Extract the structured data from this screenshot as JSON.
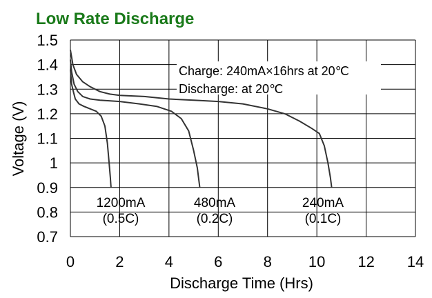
{
  "chart_data": {
    "type": "line",
    "title": "Low Rate Discharge",
    "title_color": "#1a7a1a",
    "xlabel": "Discharge Time (Hrs)",
    "ylabel": "Voltage (V)",
    "xlim": [
      0,
      14
    ],
    "ylim": [
      0.7,
      1.5
    ],
    "x_ticks": [
      "0",
      "2",
      "4",
      "6",
      "8",
      "10",
      "12",
      "14"
    ],
    "y_ticks": [
      "0.7",
      "0.8",
      "0.9",
      "1",
      "1.1",
      "1.2",
      "1.3",
      "1.4",
      "1.5"
    ],
    "grid": true,
    "annotations": {
      "charge": "Charge: 240mA×16hrs at 20℃",
      "discharge": "Discharge: at 20℃"
    },
    "series": [
      {
        "name": "1200mA (0.5C)",
        "label_line1": "1200mA",
        "label_line2": "(0.5C)",
        "points": [
          [
            0.0,
            1.38
          ],
          [
            0.05,
            1.32
          ],
          [
            0.12,
            1.29
          ],
          [
            0.2,
            1.26
          ],
          [
            0.35,
            1.24
          ],
          [
            0.55,
            1.23
          ],
          [
            0.8,
            1.22
          ],
          [
            1.05,
            1.21
          ],
          [
            1.25,
            1.19
          ],
          [
            1.4,
            1.15
          ],
          [
            1.5,
            1.08
          ],
          [
            1.57,
            1.0
          ],
          [
            1.62,
            0.94
          ],
          [
            1.65,
            0.9
          ]
        ]
      },
      {
        "name": "480mA (0.2C)",
        "label_line1": "480mA",
        "label_line2": "(0.2C)",
        "points": [
          [
            0.0,
            1.42
          ],
          [
            0.05,
            1.37
          ],
          [
            0.15,
            1.32
          ],
          [
            0.3,
            1.29
          ],
          [
            0.5,
            1.27
          ],
          [
            0.8,
            1.26
          ],
          [
            1.2,
            1.255
          ],
          [
            2.0,
            1.25
          ],
          [
            2.8,
            1.24
          ],
          [
            3.5,
            1.23
          ],
          [
            4.1,
            1.21
          ],
          [
            4.5,
            1.18
          ],
          [
            4.8,
            1.13
          ],
          [
            5.0,
            1.05
          ],
          [
            5.15,
            0.98
          ],
          [
            5.25,
            0.9
          ]
        ]
      },
      {
        "name": "240mA (0.1C)",
        "label_line1": "240mA",
        "label_line2": "(0.1C)",
        "points": [
          [
            0.0,
            1.46
          ],
          [
            0.1,
            1.4
          ],
          [
            0.25,
            1.36
          ],
          [
            0.5,
            1.33
          ],
          [
            0.8,
            1.31
          ],
          [
            1.2,
            1.29
          ],
          [
            1.6,
            1.28
          ],
          [
            2.0,
            1.275
          ],
          [
            3.0,
            1.27
          ],
          [
            4.0,
            1.26
          ],
          [
            5.0,
            1.255
          ],
          [
            6.0,
            1.25
          ],
          [
            7.0,
            1.24
          ],
          [
            8.0,
            1.22
          ],
          [
            8.7,
            1.2
          ],
          [
            9.3,
            1.17
          ],
          [
            9.8,
            1.14
          ],
          [
            10.1,
            1.12
          ],
          [
            10.3,
            1.07
          ],
          [
            10.45,
            1.0
          ],
          [
            10.55,
            0.94
          ],
          [
            10.6,
            0.9
          ]
        ]
      }
    ]
  }
}
